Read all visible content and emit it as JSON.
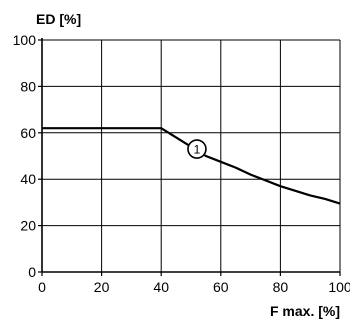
{
  "chart_data": {
    "type": "line",
    "xlabel": "F max. [%]",
    "ylabel": "ED [%]",
    "xlim": [
      0,
      100
    ],
    "ylim": [
      0,
      100
    ],
    "xticks": [
      0,
      20,
      40,
      60,
      80,
      100
    ],
    "yticks": [
      0,
      20,
      40,
      60,
      80,
      100
    ],
    "grid": true,
    "series": [
      {
        "x": [
          0,
          40,
          45,
          50,
          55,
          60,
          65,
          70,
          75,
          80,
          85,
          90,
          95,
          100
        ],
        "y": [
          62,
          62,
          58,
          54,
          50,
          47.5,
          45,
          42,
          39.5,
          37,
          35,
          33,
          31.5,
          29.5
        ]
      }
    ],
    "annotations": [
      {
        "text": "1",
        "x": 52,
        "y": 53
      }
    ]
  },
  "colors": {
    "line": "#000000",
    "grid": "#000000",
    "background": "#ffffff"
  }
}
